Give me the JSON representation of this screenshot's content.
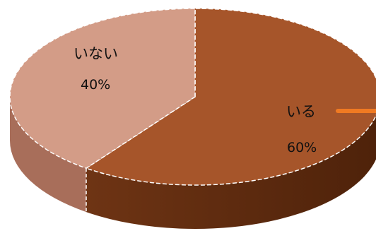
{
  "colors": {
    "slice_iru_top": "#A6552A",
    "slice_iru_side": "#6E3414",
    "slice_inai_top": "#D39C87",
    "slice_inai_side": "#A86E5A",
    "leader_line": "#F07A22",
    "divider": "#FFFFFF"
  },
  "chart_data": {
    "type": "pie",
    "three_d": true,
    "start_angle_deg": 0,
    "direction": "clockwise",
    "legend": "none",
    "slices": [
      {
        "label": "いる",
        "value": 60,
        "value_label": "60%"
      },
      {
        "label": "いない",
        "value": 40,
        "value_label": "40%"
      }
    ]
  }
}
